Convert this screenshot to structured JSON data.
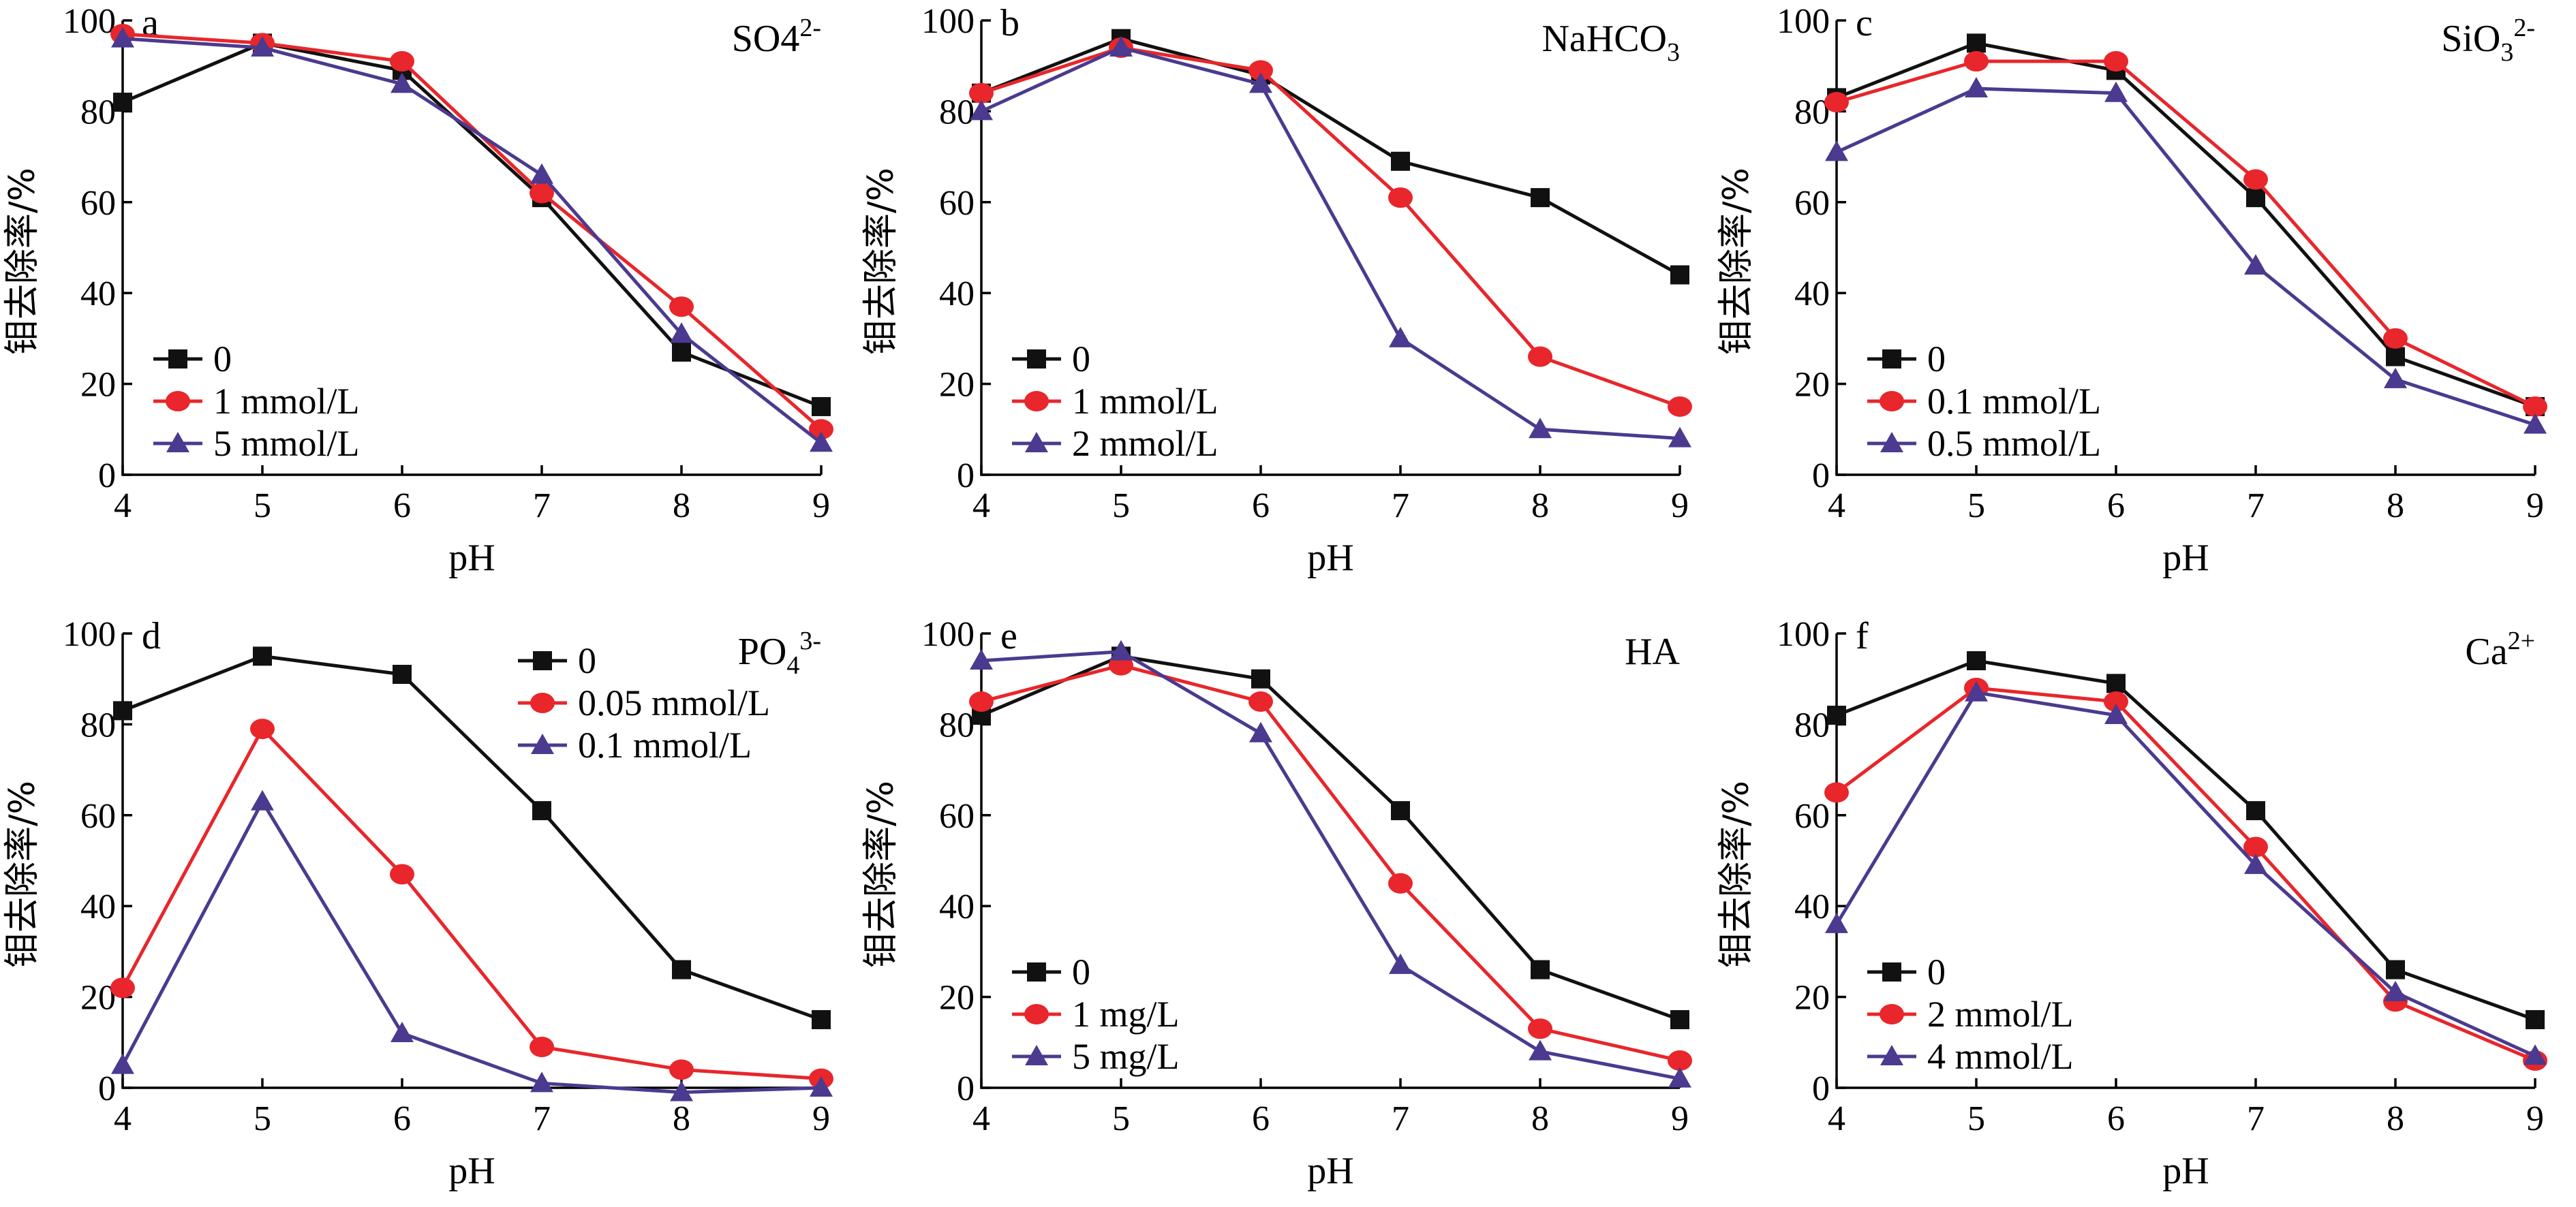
{
  "colors": {
    "series0": "#111111",
    "series1": "#e8262b",
    "series2": "#4b3a8f"
  },
  "markers": [
    "square",
    "circle",
    "triangle"
  ],
  "chart_data": [
    {
      "type": "line",
      "panel": "a",
      "tag": "SO4",
      "tag_sup": "2-",
      "xlabel": "pH",
      "ylabel": "钼去除率/%",
      "x": [
        4,
        5,
        6,
        7,
        8,
        9
      ],
      "xlim": [
        4,
        9
      ],
      "ylim": [
        0,
        100
      ],
      "yticks": [
        0,
        20,
        40,
        60,
        80,
        100
      ],
      "legend_position": "bottom-left",
      "grid": false,
      "series": [
        {
          "name": "0",
          "values": [
            82,
            95,
            89,
            61,
            27,
            15
          ]
        },
        {
          "name": "1 mmol/L",
          "values": [
            97,
            95,
            91,
            62,
            37,
            10
          ]
        },
        {
          "name": "5 mmol/L",
          "values": [
            96,
            94,
            86,
            66,
            31,
            7
          ]
        }
      ]
    },
    {
      "type": "line",
      "panel": "b",
      "tag": "NaHCO",
      "tag_sub": "3",
      "xlabel": "pH",
      "ylabel": "钼去除率/%",
      "x": [
        4,
        5,
        6,
        7,
        8,
        9
      ],
      "xlim": [
        4,
        9
      ],
      "ylim": [
        0,
        100
      ],
      "yticks": [
        0,
        20,
        40,
        60,
        80,
        100
      ],
      "legend_position": "bottom-left",
      "grid": false,
      "series": [
        {
          "name": "0",
          "values": [
            84,
            96,
            88,
            69,
            61,
            44
          ]
        },
        {
          "name": "1 mmol/L",
          "values": [
            84,
            94,
            89,
            61,
            26,
            15
          ]
        },
        {
          "name": "2 mmol/L",
          "values": [
            80,
            94,
            86,
            30,
            10,
            8
          ]
        }
      ]
    },
    {
      "type": "line",
      "panel": "c",
      "tag": "SiO",
      "tag_sub": "3",
      "tag_sup": "2-",
      "xlabel": "pH",
      "ylabel": "钼去除率/%",
      "x": [
        4,
        5,
        6,
        7,
        8,
        9
      ],
      "xlim": [
        4,
        9
      ],
      "ylim": [
        0,
        100
      ],
      "yticks": [
        0,
        20,
        40,
        60,
        80,
        100
      ],
      "legend_position": "bottom-left",
      "grid": false,
      "series": [
        {
          "name": "0",
          "values": [
            83,
            95,
            89,
            61,
            26,
            15
          ]
        },
        {
          "name": "0.1 mmol/L",
          "values": [
            82,
            91,
            91,
            65,
            30,
            15
          ]
        },
        {
          "name": "0.5 mmol/L",
          "values": [
            71,
            85,
            84,
            46,
            21,
            11
          ]
        }
      ]
    },
    {
      "type": "line",
      "panel": "d",
      "tag": "PO",
      "tag_sub": "4",
      "tag_sup": "3-",
      "xlabel": "pH",
      "ylabel": "钼去除率/%",
      "x": [
        4,
        5,
        6,
        7,
        8,
        9
      ],
      "xlim": [
        4,
        9
      ],
      "ylim": [
        0,
        100
      ],
      "yticks": [
        0,
        20,
        40,
        60,
        80,
        100
      ],
      "legend_position": "top-right",
      "grid": false,
      "series": [
        {
          "name": "0",
          "values": [
            83,
            95,
            91,
            61,
            26,
            15
          ]
        },
        {
          "name": "0.05 mmol/L",
          "values": [
            22,
            79,
            47,
            9,
            4,
            2
          ]
        },
        {
          "name": "0.1 mmol/L",
          "values": [
            5,
            63,
            12,
            1,
            -1,
            0
          ]
        }
      ]
    },
    {
      "type": "line",
      "panel": "e",
      "tag": "HA",
      "xlabel": "pH",
      "ylabel": "钼去除率/%",
      "x": [
        4,
        5,
        6,
        7,
        8,
        9
      ],
      "xlim": [
        4,
        9
      ],
      "ylim": [
        0,
        100
      ],
      "yticks": [
        0,
        20,
        40,
        60,
        80,
        100
      ],
      "legend_position": "bottom-left",
      "grid": false,
      "series": [
        {
          "name": "0",
          "values": [
            82,
            95,
            90,
            61,
            26,
            15
          ]
        },
        {
          "name": "1 mg/L",
          "values": [
            85,
            93,
            85,
            45,
            13,
            6
          ]
        },
        {
          "name": "5 mg/L",
          "values": [
            94,
            96,
            78,
            27,
            8,
            2
          ]
        }
      ]
    },
    {
      "type": "line",
      "panel": "f",
      "tag": "Ca",
      "tag_sup": "2+",
      "xlabel": "pH",
      "ylabel": "钼去除率/%",
      "x": [
        4,
        5,
        6,
        7,
        8,
        9
      ],
      "xlim": [
        4,
        9
      ],
      "ylim": [
        0,
        100
      ],
      "yticks": [
        0,
        20,
        40,
        60,
        80,
        100
      ],
      "legend_position": "bottom-left",
      "grid": false,
      "series": [
        {
          "name": "0",
          "values": [
            82,
            94,
            89,
            61,
            26,
            15
          ]
        },
        {
          "name": "2 mmol/L",
          "values": [
            65,
            88,
            85,
            53,
            19,
            6
          ]
        },
        {
          "name": "4 mmol/L",
          "values": [
            36,
            87,
            82,
            49,
            21,
            7
          ]
        }
      ]
    }
  ]
}
